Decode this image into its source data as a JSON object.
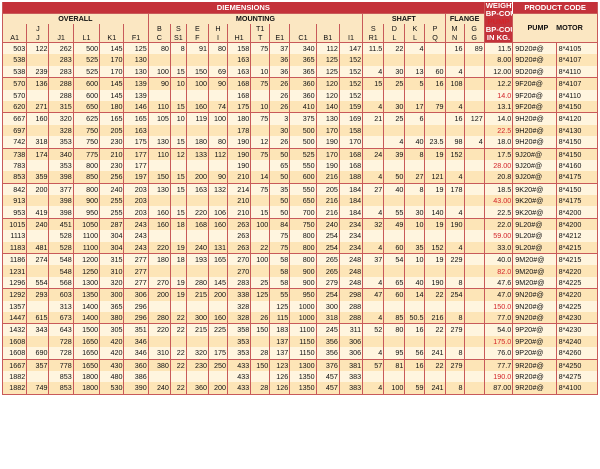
{
  "table": {
    "title": "DIEMENSIONS",
    "product_code_title": "PRODUCT CODE",
    "groups": {
      "overall": "OVERALL",
      "mounting": "MOUNTING",
      "shaft": "SHAFT",
      "flange": "FLANGE"
    },
    "weight_header": [
      "WEIGHT",
      "BP-COU",
      "PUMP",
      "BP-COU",
      "IN KG."
    ],
    "code_headers": {
      "pump": "PUMP",
      "motor": "MOTOR"
    },
    "top_letters": [
      "",
      "J",
      "",
      "",
      "",
      "",
      "B",
      "S",
      "E",
      "H",
      "",
      "T1",
      "",
      "",
      "",
      "",
      "S",
      "D",
      "K",
      "P",
      "M",
      "G",
      "",
      "",
      ""
    ],
    "mid_letters": [
      "",
      "A",
      "",
      "",
      "",
      "",
      "C",
      "S1",
      "F",
      "I",
      "",
      "T",
      "",
      "",
      "",
      "",
      "R1",
      "L",
      "L",
      "Q",
      "N",
      "G",
      "",
      "",
      ""
    ],
    "columns": [
      "A1",
      "J",
      "J1",
      "L1",
      "K1",
      "F1",
      "",
      "",
      "",
      "",
      "H1",
      "",
      "E1",
      "C1",
      "B1",
      "I1",
      "",
      "",
      "",
      "",
      "",
      "",
      "",
      "",
      ""
    ],
    "rows": [
      [
        "503",
        "122",
        "262",
        "500",
        "145",
        "125",
        "80",
        "8",
        "91",
        "80",
        "158",
        "75",
        "37",
        "340",
        "112",
        "147",
        "11.5",
        "22",
        "4",
        "",
        "16",
        "89",
        "11.5",
        "9D20#@",
        "8*4105"
      ],
      [
        "538",
        "",
        "283",
        "525",
        "170",
        "130",
        "",
        "",
        "",
        "",
        "163",
        "",
        "36",
        "365",
        "125",
        "152",
        "",
        "",
        "",
        "",
        "",
        "",
        "8.00",
        "9D20#@",
        "8*4107"
      ],
      [
        "538",
        "239",
        "283",
        "525",
        "170",
        "130",
        "100",
        "15",
        "150",
        "69",
        "163",
        "10",
        "36",
        "365",
        "125",
        "152",
        "4",
        "30",
        "13",
        "60",
        "4",
        "",
        "12.00",
        "9D20#@",
        "8*4110"
      ],
      [
        "570",
        "136",
        "288",
        "600",
        "145",
        "139",
        "90",
        "10",
        "100",
        "90",
        "168",
        "75",
        "26",
        "360",
        "120",
        "152",
        "15",
        "25",
        "5",
        "16",
        "108",
        "",
        "12.2",
        "9F20#@",
        "8*4107"
      ],
      [
        "570",
        "",
        "288",
        "600",
        "145",
        "139",
        "",
        "",
        "",
        "",
        "168",
        "",
        "26",
        "360",
        "120",
        "152",
        "",
        "",
        "",
        "",
        "",
        "",
        "14.0",
        "9F20#@",
        "8*4110"
      ],
      [
        "620",
        "271",
        "315",
        "650",
        "180",
        "146",
        "110",
        "15",
        "160",
        "74",
        "175",
        "10",
        "26",
        "410",
        "140",
        "159",
        "4",
        "30",
        "17",
        "79",
        "4",
        "",
        "13.1",
        "9F20#@",
        "8*4150"
      ],
      [
        "667",
        "160",
        "320",
        "625",
        "165",
        "165",
        "105",
        "10",
        "119",
        "100",
        "180",
        "75",
        "3",
        "375",
        "130",
        "169",
        "21",
        "25",
        "6",
        "",
        "16",
        "127",
        "14.0",
        "9H20#@",
        "8*4120"
      ],
      [
        "697",
        "",
        "328",
        "750",
        "205",
        "163",
        "",
        "",
        "",
        "",
        "178",
        "",
        "30",
        "500",
        "170",
        "158",
        "",
        "",
        "",
        "",
        "",
        "",
        "22.5",
        "9H20#@",
        "8*4130"
      ],
      [
        "742",
        "318",
        "353",
        "750",
        "230",
        "175",
        "130",
        "15",
        "180",
        "80",
        "190",
        "12",
        "26",
        "500",
        "190",
        "170",
        "",
        "4",
        "40",
        "23.5",
        "98",
        "4",
        "18.0",
        "9H20#@",
        "8*4150"
      ],
      [
        "738",
        "174",
        "340",
        "775",
        "210",
        "177",
        "110",
        "12",
        "133",
        "112",
        "190",
        "75",
        "50",
        "525",
        "170",
        "168",
        "24",
        "39",
        "8",
        "19",
        "152",
        "",
        "17.5",
        "9J20#@",
        "8*4150"
      ],
      [
        "783",
        "",
        "353",
        "800",
        "230",
        "177",
        "",
        "",
        "",
        "",
        "190",
        "",
        "65",
        "550",
        "190",
        "168",
        "",
        "",
        "",
        "",
        "",
        "",
        "28.00",
        "9J20#@",
        "8*4160"
      ],
      [
        "853",
        "359",
        "398",
        "850",
        "256",
        "197",
        "150",
        "15",
        "200",
        "90",
        "210",
        "14",
        "50",
        "600",
        "216",
        "188",
        "4",
        "50",
        "27",
        "121",
        "4",
        "",
        "20.8",
        "9J20#@",
        "8*4175"
      ],
      [
        "842",
        "200",
        "377",
        "800",
        "240",
        "203",
        "130",
        "15",
        "163",
        "132",
        "214",
        "75",
        "35",
        "550",
        "205",
        "184",
        "27",
        "40",
        "8",
        "19",
        "178",
        "",
        "18.5",
        "9K20#@",
        "8*4150"
      ],
      [
        "913",
        "",
        "398",
        "900",
        "255",
        "203",
        "",
        "",
        "",
        "",
        "210",
        "",
        "50",
        "650",
        "216",
        "184",
        "",
        "",
        "",
        "",
        "",
        "",
        "43.00",
        "9K20#@",
        "8*4175"
      ],
      [
        "953",
        "419",
        "398",
        "950",
        "255",
        "203",
        "160",
        "15",
        "220",
        "106",
        "210",
        "15",
        "50",
        "700",
        "216",
        "184",
        "4",
        "55",
        "30",
        "140",
        "4",
        "",
        "22.5",
        "9K20#@",
        "8*4200"
      ],
      [
        "1015",
        "240",
        "451",
        "1050",
        "287",
        "243",
        "160",
        "18",
        "168",
        "160",
        "263",
        "100",
        "84",
        "750",
        "240",
        "234",
        "32",
        "49",
        "10",
        "19",
        "190",
        "",
        "22.0",
        "9L20#@",
        "8*4200"
      ],
      [
        "1113",
        "",
        "528",
        "1100",
        "304",
        "243",
        "",
        "",
        "",
        "",
        "263",
        "",
        "75",
        "800",
        "254",
        "234",
        "",
        "",
        "",
        "",
        "",
        "",
        "59.00",
        "9L20#@",
        "8*4212"
      ],
      [
        "1183",
        "481",
        "528",
        "1100",
        "304",
        "243",
        "220",
        "19",
        "240",
        "131",
        "263",
        "22",
        "75",
        "800",
        "254",
        "234",
        "4",
        "60",
        "35",
        "152",
        "4",
        "",
        "33.0",
        "9L20#@",
        "8*4215"
      ],
      [
        "1186",
        "274",
        "548",
        "1200",
        "315",
        "277",
        "180",
        "18",
        "193",
        "165",
        "270",
        "100",
        "58",
        "800",
        "265",
        "248",
        "37",
        "54",
        "10",
        "19",
        "229",
        "",
        "40.0",
        "9M20#@",
        "8*4215"
      ],
      [
        "1231",
        "",
        "548",
        "1250",
        "310",
        "277",
        "",
        "",
        "",
        "",
        "270",
        "",
        "58",
        "900",
        "265",
        "248",
        "",
        "",
        "",
        "",
        "",
        "",
        "82.0",
        "9M20#@",
        "8*4220"
      ],
      [
        "1296",
        "554",
        "568",
        "1300",
        "320",
        "277",
        "270",
        "19",
        "280",
        "145",
        "283",
        "25",
        "58",
        "900",
        "279",
        "248",
        "4",
        "65",
        "40",
        "190",
        "8",
        "",
        "47.6",
        "9M20#@",
        "8*4225"
      ],
      [
        "1292",
        "293",
        "603",
        "1350",
        "300",
        "306",
        "200",
        "19",
        "215",
        "200",
        "338",
        "125",
        "55",
        "950",
        "254",
        "298",
        "47",
        "60",
        "14",
        "22",
        "254",
        "",
        "47.0",
        "9N20#@",
        "8*4220"
      ],
      [
        "1357",
        "",
        "313",
        "1400",
        "365",
        "296",
        "",
        "",
        "",
        "",
        "328",
        "",
        "125",
        "1000",
        "300",
        "288",
        "",
        "",
        "",
        "",
        "",
        "",
        "150.0",
        "9N20#@",
        "8*4225"
      ],
      [
        "1447",
        "615",
        "673",
        "1400",
        "380",
        "296",
        "280",
        "22",
        "300",
        "160",
        "328",
        "26",
        "115",
        "1000",
        "318",
        "288",
        "4",
        "85",
        "50.5",
        "216",
        "8",
        "",
        "77.0",
        "9N20#@",
        "8*4230"
      ],
      [
        "1432",
        "343",
        "643",
        "1500",
        "305",
        "351",
        "220",
        "22",
        "215",
        "225",
        "358",
        "150",
        "183",
        "1100",
        "245",
        "311",
        "52",
        "80",
        "16",
        "22",
        "279",
        "",
        "54.0",
        "9P20#@",
        "8*4230"
      ],
      [
        "1608",
        "",
        "728",
        "1650",
        "420",
        "346",
        "",
        "",
        "",
        "",
        "353",
        "",
        "137",
        "1150",
        "356",
        "306",
        "",
        "",
        "",
        "",
        "",
        "",
        "175.0",
        "9P20#@",
        "8*4240"
      ],
      [
        "1608",
        "690",
        "728",
        "1650",
        "420",
        "346",
        "310",
        "22",
        "320",
        "175",
        "353",
        "28",
        "137",
        "1150",
        "356",
        "306",
        "4",
        "95",
        "56",
        "241",
        "8",
        "",
        "76.0",
        "9P20#@",
        "8*4260"
      ],
      [
        "1667",
        "357",
        "778",
        "1650",
        "430",
        "360",
        "380",
        "22",
        "230",
        "250",
        "433",
        "150",
        "123",
        "1300",
        "376",
        "381",
        "57",
        "81",
        "16",
        "22",
        "279",
        "",
        "77.7",
        "9R20#@",
        "8*4250"
      ],
      [
        "1882",
        "",
        "853",
        "1800",
        "480",
        "386",
        "",
        "",
        "",
        "",
        "433",
        "",
        "126",
        "1350",
        "457",
        "383",
        "",
        "",
        "",
        "",
        "",
        "",
        "190.0",
        "9R20#@",
        "8*4275"
      ],
      [
        "1882",
        "749",
        "853",
        "1800",
        "530",
        "390",
        "240",
        "22",
        "360",
        "200",
        "433",
        "28",
        "126",
        "1350",
        "457",
        "383",
        "4",
        "100",
        "59",
        "241",
        "8",
        "",
        "87.00",
        "9R20#@",
        "8*4100"
      ]
    ],
    "red_weight_rows": [
      4,
      7,
      10,
      13,
      16,
      19,
      22,
      25,
      28
    ]
  }
}
